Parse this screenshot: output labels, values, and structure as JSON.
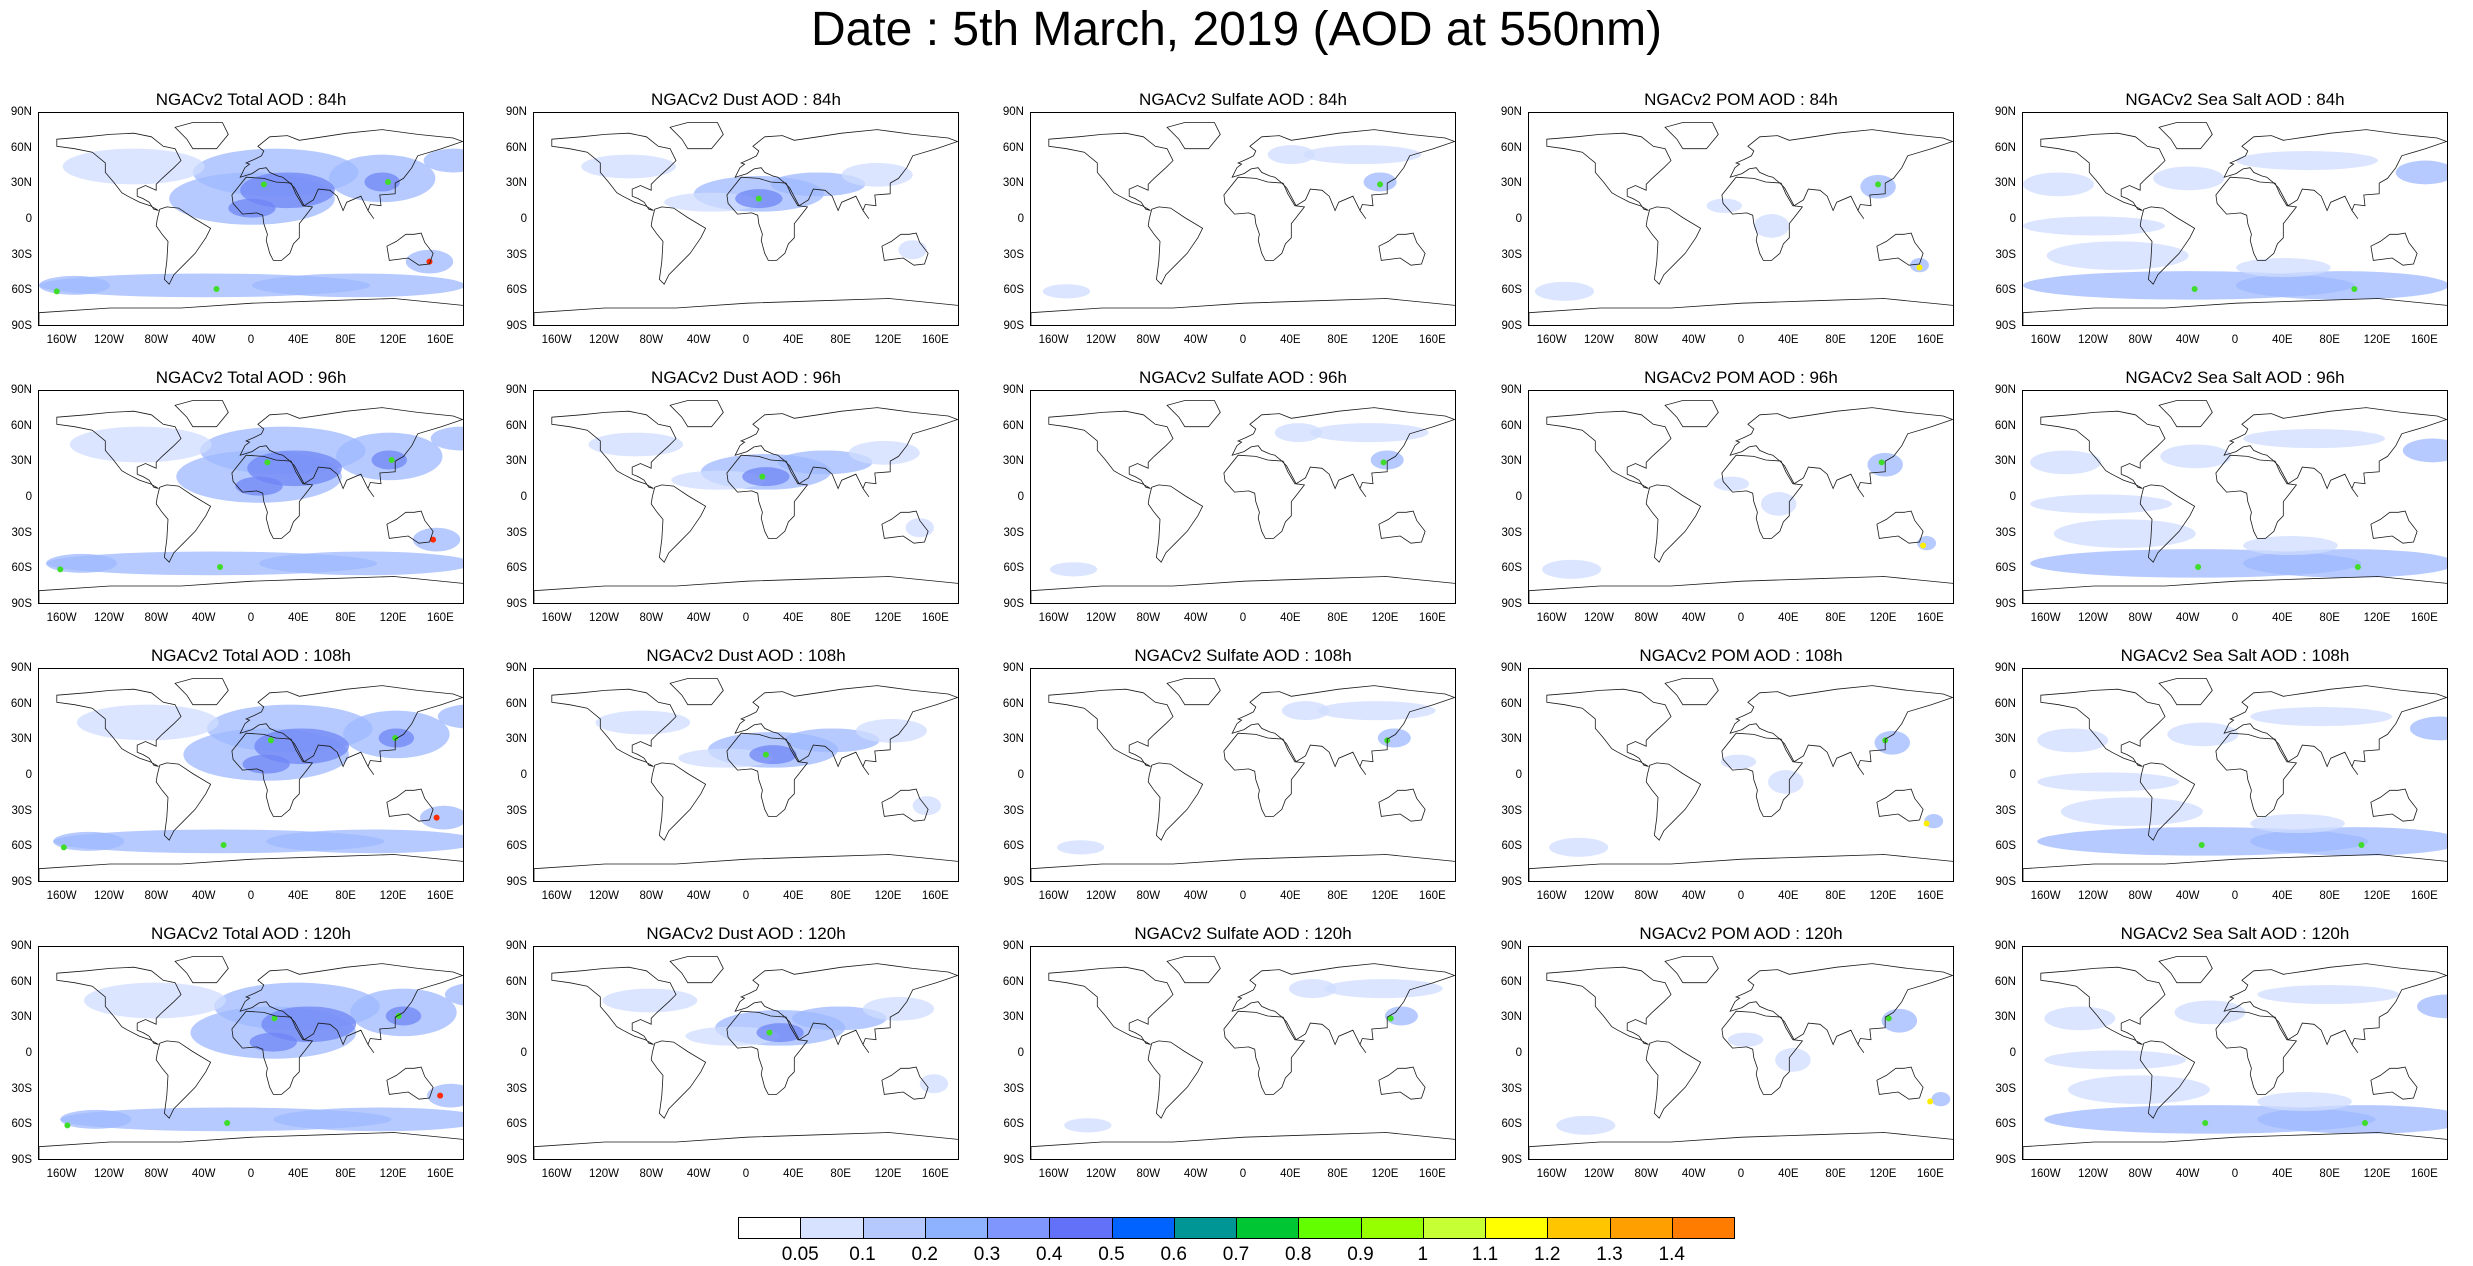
{
  "title": "Date : 5th March, 2019 (AOD at 550nm)",
  "columns": [
    "total",
    "dust",
    "sulfate",
    "pom",
    "seasalt"
  ],
  "panels": [
    [
      "NGACv2 Total AOD : 84h",
      "NGACv2 Dust AOD : 84h",
      "NGACv2 Sulfate AOD : 84h",
      "NGACv2 POM AOD : 84h",
      "NGACv2 Sea Salt AOD : 84h"
    ],
    [
      "NGACv2 Total AOD : 96h",
      "NGACv2 Dust AOD : 96h",
      "NGACv2 Sulfate AOD : 96h",
      "NGACv2 POM AOD : 96h",
      "NGACv2 Sea Salt AOD : 96h"
    ],
    [
      "NGACv2 Total AOD : 108h",
      "NGACv2 Dust AOD : 108h",
      "NGACv2 Sulfate AOD : 108h",
      "NGACv2 POM AOD : 108h",
      "NGACv2 Sea Salt AOD : 108h"
    ],
    [
      "NGACv2 Total AOD : 120h",
      "NGACv2 Dust AOD : 120h",
      "NGACv2 Sulfate AOD : 120h",
      "NGACv2 POM AOD : 120h",
      "NGACv2 Sea Salt  AOD : 120h"
    ]
  ],
  "lat_labels": [
    "90N",
    "60N",
    "30N",
    "0",
    "30S",
    "60S",
    "90S"
  ],
  "lon_labels": [
    "160W",
    "120W",
    "80W",
    "40W",
    "0",
    "40E",
    "80E",
    "120E",
    "160E"
  ],
  "colorbar": {
    "labels": [
      "0.05",
      "0.1",
      "0.2",
      "0.3",
      "0.4",
      "0.5",
      "0.6",
      "0.7",
      "0.8",
      "0.9",
      "1",
      "1.1",
      "1.2",
      "1.3",
      "1.4"
    ],
    "colors": [
      "#ffffff",
      "#d6e2ff",
      "#b5c9ff",
      "#8eb2ff",
      "#7f96ff",
      "#6370f8",
      "#0063ff",
      "#009696",
      "#00c633",
      "#63ff00",
      "#96ff00",
      "#c6ff33",
      "#ffff00",
      "#ffc600",
      "#ffa000",
      "#ff7c00",
      "#ff1900"
    ]
  },
  "colors": {
    "light_blue": "#cfdcff",
    "mid_blue": "#9db8ff",
    "deep_blue": "#6f86f5",
    "green": "#3fdc2a",
    "yellow": "#ffee00",
    "red": "#ff2a00",
    "coastline": "#1a1a1a"
  }
}
